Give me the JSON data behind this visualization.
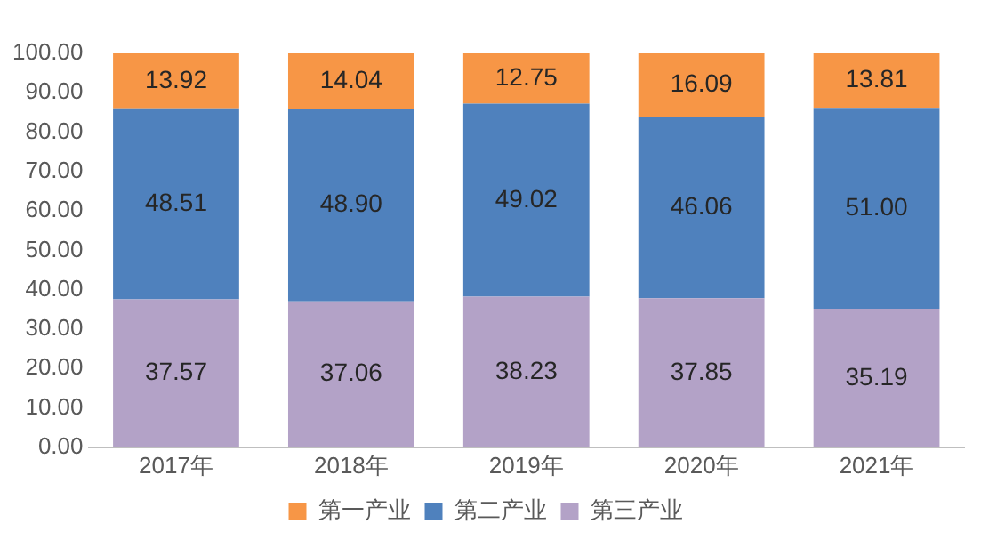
{
  "chart_data": {
    "type": "bar",
    "stacked": true,
    "categories": [
      "2017年",
      "2018年",
      "2019年",
      "2020年",
      "2021年"
    ],
    "series": [
      {
        "name": "第三产业",
        "color": "#b3a2c7",
        "values": [
          37.57,
          37.06,
          38.23,
          37.85,
          35.19
        ],
        "value_labels": [
          "37.57",
          "37.06",
          "38.23",
          "37.85",
          "35.19"
        ]
      },
      {
        "name": "第二产业",
        "color": "#4f81bd",
        "values": [
          48.51,
          48.9,
          49.02,
          46.06,
          51.0
        ],
        "value_labels": [
          "48.51",
          "48.90",
          "49.02",
          "46.06",
          "51.00"
        ]
      },
      {
        "name": "第一产业",
        "color": "#f79646",
        "values": [
          13.92,
          14.04,
          12.75,
          16.09,
          13.81
        ],
        "value_labels": [
          "13.92",
          "14.04",
          "12.75",
          "16.09",
          "13.81"
        ]
      }
    ],
    "ylim": [
      0,
      100
    ],
    "yticks": [
      {
        "value": 0,
        "label": "0.00"
      },
      {
        "value": 10,
        "label": "10.00"
      },
      {
        "value": 20,
        "label": "20.00"
      },
      {
        "value": 30,
        "label": "30.00"
      },
      {
        "value": 40,
        "label": "40.00"
      },
      {
        "value": 50,
        "label": "50.00"
      },
      {
        "value": 60,
        "label": "60.00"
      },
      {
        "value": 70,
        "label": "70.00"
      },
      {
        "value": 80,
        "label": "80.00"
      },
      {
        "value": 90,
        "label": "90.00"
      },
      {
        "value": 100,
        "label": "100.00"
      }
    ],
    "grid": false,
    "legend": "bottom"
  }
}
